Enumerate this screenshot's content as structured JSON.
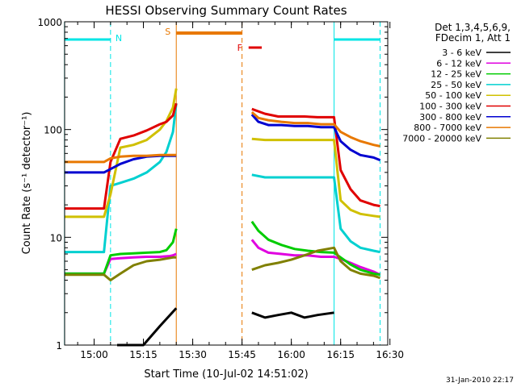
{
  "chart_data": {
    "type": "line",
    "title": "HESSI Observing Summary Count Rates",
    "xlabel": "Start Time (10-Jul-02 14:51:02)",
    "ylabel": "Count Rate (s⁻¹ detector⁻¹)",
    "yscale": "log",
    "ylim": [
      1,
      1000
    ],
    "xlim": [
      "14:51:02",
      "16:29:20"
    ],
    "x_ticks": [
      "15:00",
      "15:15",
      "15:30",
      "15:45",
      "16:00",
      "16:15",
      "16:30"
    ],
    "y_ticks": [
      "1",
      "10",
      "100",
      "1000"
    ],
    "legend_header": [
      "Det 1,3,4,5,6,9,",
      "FDecim 1, Att 1"
    ],
    "legend_position": "right",
    "timestamp": "31-Jan-2010 22:17",
    "annotations": [
      {
        "text": "N",
        "x": "15:05",
        "color": "#00e5e5"
      },
      {
        "text": "S",
        "x": "15:25",
        "color": "#e87800"
      },
      {
        "text": "F",
        "x": "15:45",
        "color": "#e00000"
      }
    ],
    "series": [
      {
        "name": "3 - 6 keV",
        "color": "#000000",
        "segments": [
          {
            "x": [
              "15:07",
              "15:10",
              "15:15",
              "15:20",
              "15:25"
            ],
            "y": [
              1.0,
              1.0,
              1.0,
              1.5,
              2.2
            ]
          },
          {
            "x": [
              "15:48",
              "15:52",
              "15:56",
              "16:00",
              "16:04",
              "16:08",
              "16:13"
            ],
            "y": [
              2.0,
              1.8,
              1.9,
              2.0,
              1.8,
              1.9,
              2.0
            ]
          }
        ]
      },
      {
        "name": "6 - 12 keV",
        "color": "#e000e0",
        "segments": [
          {
            "x": [
              "14:51",
              "15:03",
              "15:05",
              "15:08",
              "15:12",
              "15:16",
              "15:20",
              "15:23",
              "15:24",
              "15:25"
            ],
            "y": [
              4.6,
              4.6,
              6.3,
              6.4,
              6.5,
              6.6,
              6.6,
              6.7,
              6.8,
              7.0
            ]
          },
          {
            "x": [
              "15:48",
              "15:50",
              "15:53",
              "15:57",
              "16:01",
              "16:05",
              "16:09",
              "16:13",
              "16:15",
              "16:18",
              "16:21",
              "16:25",
              "16:27"
            ],
            "y": [
              9.5,
              8.0,
              7.2,
              7.0,
              6.8,
              6.8,
              6.6,
              6.6,
              6.3,
              5.8,
              5.3,
              4.8,
              4.5
            ]
          }
        ]
      },
      {
        "name": "12 - 25 keV",
        "color": "#00cc00",
        "segments": [
          {
            "x": [
              "14:51",
              "15:03",
              "15:05",
              "15:08",
              "15:12",
              "15:16",
              "15:20",
              "15:22",
              "15:24",
              "15:25"
            ],
            "y": [
              4.6,
              4.6,
              6.8,
              7.0,
              7.1,
              7.2,
              7.3,
              7.6,
              9.0,
              12.0
            ]
          },
          {
            "x": [
              "15:48",
              "15:50",
              "15:53",
              "15:57",
              "16:01",
              "16:05",
              "16:09",
              "16:13",
              "16:15",
              "16:18",
              "16:21",
              "16:25",
              "16:27"
            ],
            "y": [
              14.0,
              11.5,
              9.5,
              8.5,
              7.8,
              7.5,
              7.3,
              7.2,
              6.5,
              5.6,
              5.0,
              4.6,
              4.5
            ]
          }
        ]
      },
      {
        "name": "25 - 50 keV",
        "color": "#00d0d0",
        "segments": [
          {
            "x": [
              "14:51",
              "15:03",
              "15:05",
              "15:08",
              "15:12",
              "15:16",
              "15:20",
              "15:22",
              "15:24",
              "15:25"
            ],
            "y": [
              7.3,
              7.3,
              30,
              32,
              35,
              40,
              50,
              62,
              95,
              175
            ]
          },
          {
            "x": [
              "15:48",
              "15:52",
              "15:56",
              "16:00",
              "16:04",
              "16:08",
              "16:13",
              "16:15",
              "16:18",
              "16:21",
              "16:25",
              "16:27"
            ],
            "y": [
              38,
              36,
              36,
              36,
              36,
              36,
              36,
              12,
              9.2,
              8.0,
              7.5,
              7.3
            ]
          }
        ]
      },
      {
        "name": "50 - 100 keV",
        "color": "#d0c000",
        "segments": [
          {
            "x": [
              "14:51",
              "15:03",
              "15:05",
              "15:08",
              "15:12",
              "15:16",
              "15:20",
              "15:22",
              "15:24",
              "15:25"
            ],
            "y": [
              15.5,
              15.5,
              25,
              68,
              72,
              80,
              100,
              120,
              160,
              240
            ]
          },
          {
            "x": [
              "15:48",
              "15:52",
              "15:56",
              "16:00",
              "16:04",
              "16:08",
              "16:13",
              "16:15",
              "16:18",
              "16:21",
              "16:25",
              "16:27"
            ],
            "y": [
              82,
              80,
              80,
              80,
              80,
              80,
              80,
              22,
              18,
              16.5,
              15.8,
              15.5
            ]
          }
        ]
      },
      {
        "name": "100 - 300 keV",
        "color": "#e00000",
        "segments": [
          {
            "x": [
              "14:51",
              "15:03",
              "15:05",
              "15:08",
              "15:12",
              "15:16",
              "15:20",
              "15:22",
              "15:24",
              "15:25"
            ],
            "y": [
              18.5,
              18.5,
              50,
              82,
              88,
              98,
              112,
              118,
              135,
              175
            ]
          },
          {
            "x": [
              "15:48",
              "15:52",
              "15:56",
              "16:00",
              "16:04",
              "16:08",
              "16:13",
              "16:15",
              "16:18",
              "16:21",
              "16:25",
              "16:27"
            ],
            "y": [
              155,
              140,
              132,
              132,
              132,
              130,
              130,
              42,
              28,
              22,
              20,
              19.5
            ]
          }
        ]
      },
      {
        "name": "300 - 800 keV",
        "color": "#0000d0",
        "segments": [
          {
            "x": [
              "14:51",
              "15:03",
              "15:05",
              "15:08",
              "15:12",
              "15:16",
              "15:20",
              "15:24",
              "15:25"
            ],
            "y": [
              40,
              40,
              43,
              48,
              53,
              56,
              57,
              57,
              57
            ]
          },
          {
            "x": [
              "15:48",
              "15:50",
              "15:53",
              "15:57",
              "16:01",
              "16:05",
              "16:09",
              "16:13",
              "16:15",
              "16:18",
              "16:21",
              "16:25",
              "16:27"
            ],
            "y": [
              138,
              118,
              110,
              110,
              108,
              108,
              105,
              105,
              78,
              65,
              58,
              55,
              52
            ]
          }
        ]
      },
      {
        "name": "800 - 7000 keV",
        "color": "#e87800",
        "segments": [
          {
            "x": [
              "14:51",
              "15:03",
              "15:05",
              "15:08",
              "15:12",
              "15:16",
              "15:20",
              "15:24",
              "15:25"
            ],
            "y": [
              50,
              50,
              54,
              56,
              57,
              57,
              58,
              58,
              58
            ]
          },
          {
            "x": [
              "15:48",
              "15:50",
              "15:53",
              "15:57",
              "16:01",
              "16:05",
              "16:09",
              "16:13",
              "16:15",
              "16:18",
              "16:21",
              "16:25",
              "16:27"
            ],
            "y": [
              145,
              128,
              122,
              118,
              115,
              115,
              112,
              112,
              95,
              85,
              78,
              72,
              70
            ]
          }
        ]
      },
      {
        "name": "7000 - 20000 keV",
        "color": "#808000",
        "segments": [
          {
            "x": [
              "14:51",
              "15:03",
              "15:05",
              "15:08",
              "15:12",
              "15:16",
              "15:20",
              "15:24",
              "15:25"
            ],
            "y": [
              4.5,
              4.5,
              4.0,
              4.6,
              5.5,
              6.0,
              6.2,
              6.5,
              6.5
            ]
          },
          {
            "x": [
              "15:48",
              "15:52",
              "15:56",
              "16:00",
              "16:04",
              "16:08",
              "16:13",
              "16:15",
              "16:18",
              "16:21",
              "16:25",
              "16:27"
            ],
            "y": [
              5.0,
              5.5,
              5.8,
              6.2,
              6.8,
              7.5,
              8.0,
              6.0,
              5.0,
              4.6,
              4.4,
              4.2
            ]
          }
        ]
      }
    ],
    "markers": [
      {
        "kind": "night",
        "color": "#00e5e5",
        "solid_start": "14:51",
        "dashed_end": "15:05"
      },
      {
        "kind": "night",
        "color": "#00e5e5",
        "solid_start": "16:13",
        "dashed_end": "16:27"
      },
      {
        "kind": "saa",
        "color": "#e87800",
        "solid_start": "15:25",
        "dashed_end": "15:45"
      },
      {
        "kind": "flare",
        "color": "#e00000",
        "start": "15:47",
        "end": "15:51"
      }
    ]
  }
}
